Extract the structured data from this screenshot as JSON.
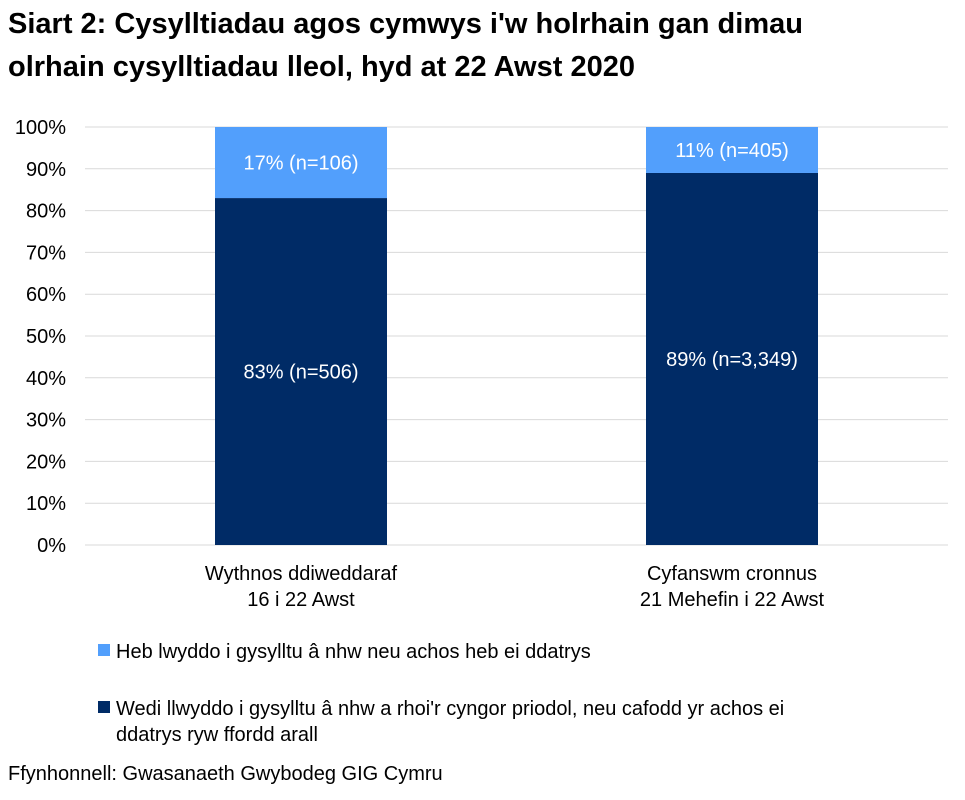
{
  "chart_data": {
    "type": "bar",
    "stacked": true,
    "title_lines": [
      "Siart 2: Cysylltiadau agos cymwys i'w holrhain gan dimau",
      "olrhain cysylltiadau lleol, hyd at 22 Awst 2020"
    ],
    "categories": [
      [
        "Wythnos ddiweddaraf",
        "16 i 22 Awst"
      ],
      [
        "Cyfanswm cronnus",
        "21 Mehefin i 22 Awst"
      ]
    ],
    "ylim": [
      0,
      100
    ],
    "yticks": [
      0,
      10,
      20,
      30,
      40,
      50,
      60,
      70,
      80,
      90,
      100
    ],
    "ytick_labels": [
      "0%",
      "10%",
      "20%",
      "30%",
      "40%",
      "50%",
      "60%",
      "70%",
      "80%",
      "90%",
      "100%"
    ],
    "grid": true,
    "legend_placement": "bottom",
    "series": [
      {
        "name": "Wedi llwyddo i gysylltu â nhw a rhoi'r cyngor priodol, neu cafodd yr achos ei ddatrys ryw ffordd arall",
        "legend_lines": [
          "Wedi llwyddo i gysylltu â nhw a rhoi'r cyngor priodol, neu cafodd yr achos ei",
          "ddatrys ryw ffordd arall"
        ],
        "color": "#002b66",
        "values": [
          83,
          89
        ],
        "labels": [
          "83% (n=506)",
          "89% (n=3,349)"
        ]
      },
      {
        "name": "Heb lwyddo i gysylltu â nhw neu achos heb ei ddatrys",
        "legend_lines": [
          "Heb lwyddo i gysylltu â nhw neu achos heb ei ddatrys"
        ],
        "color": "#529ffc",
        "values": [
          17,
          11
        ],
        "labels": [
          "17% (n=106)",
          "11% (n=405)"
        ]
      }
    ],
    "source": "Ffynhonnell: Gwasanaeth Gwybodeg GIG Cymru"
  }
}
